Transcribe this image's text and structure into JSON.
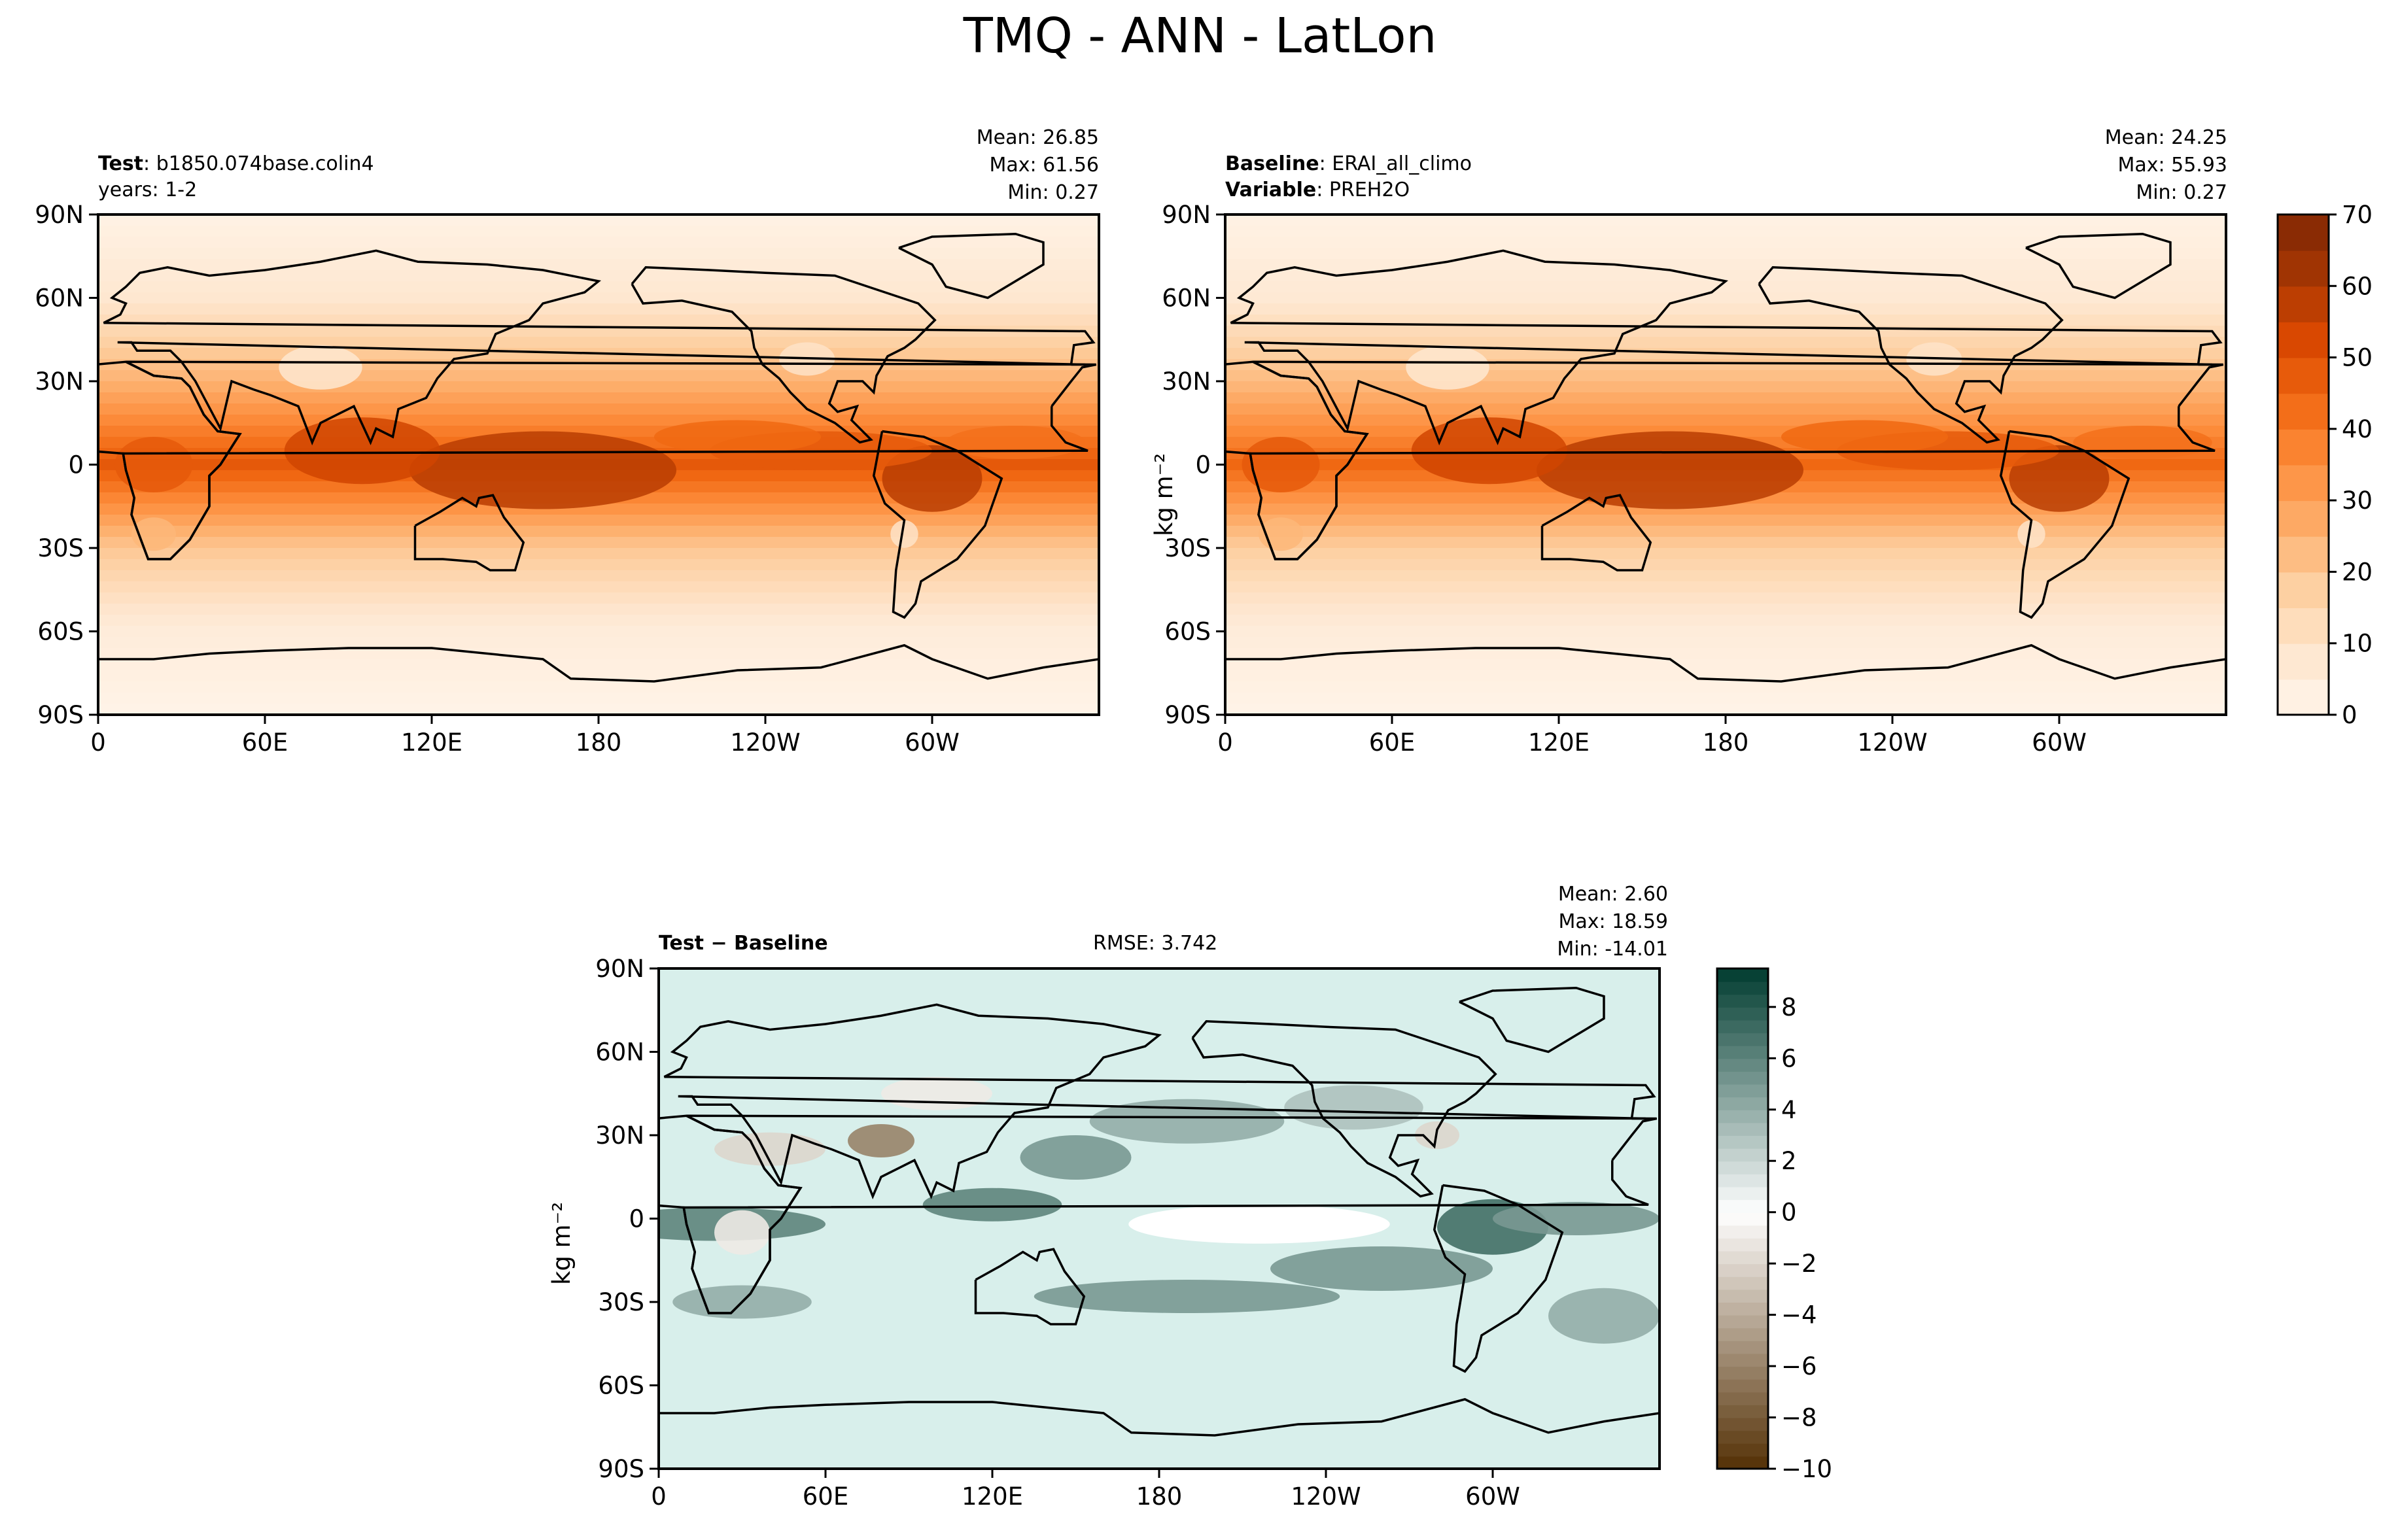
{
  "figure_title": "TMQ - ANN - LatLon",
  "panels": {
    "test": {
      "title_bold": "Test",
      "name": "b1850.074base.colin4",
      "line2": "years: 1-2",
      "stats": [
        "Mean: 26.85",
        "Max: 61.56",
        "Min:  0.27"
      ]
    },
    "baseline": {
      "title_bold": "Baseline",
      "name": "ERAI_all_climo",
      "variable_bold": "Variable",
      "variable": "PREH2O",
      "stats": [
        "Mean: 24.25",
        "Max: 55.93",
        "Min:  0.27"
      ],
      "colorbar_label": "kg m⁻²"
    },
    "diff": {
      "title": "Test − Baseline",
      "rmse": "RMSE: 3.742",
      "stats": [
        "Mean:  2.60",
        "Max: 18.59",
        "Min: -14.01"
      ],
      "ylabel": "kg m⁻²"
    }
  },
  "colors": {
    "sequential": [
      "#fff5eb",
      "#fee6ce",
      "#fdd0a2",
      "#fdae6b",
      "#fd8d3c",
      "#f16913",
      "#d94801",
      "#a63603",
      "#7f2704"
    ],
    "diverging_brown": "#543005",
    "diverging_white": "#ffffff",
    "diverging_teal": "#003c30"
  },
  "chart_data": [
    {
      "type": "heatmap",
      "name": "Test",
      "title": "b1850.074base.colin4",
      "xticklabels": [
        "0",
        "60E",
        "120E",
        "180",
        "120W",
        "60W"
      ],
      "yticklabels": [
        "90N",
        "60N",
        "30N",
        "0",
        "30S",
        "60S",
        "90S"
      ],
      "xlim": [
        0,
        360
      ],
      "ylim": [
        -90,
        90
      ],
      "mean": 26.85,
      "max": 61.56,
      "min": 0.27,
      "color_range": [
        0,
        70
      ],
      "zonal_profile": {
        "lat": [
          -90,
          -60,
          -30,
          0,
          30,
          60,
          90
        ],
        "value": [
          1,
          5,
          20,
          48,
          25,
          8,
          2
        ]
      }
    },
    {
      "type": "heatmap",
      "name": "Baseline",
      "title": "ERAI_all_climo",
      "xticklabels": [
        "0",
        "60E",
        "120E",
        "180",
        "120W",
        "60W"
      ],
      "yticklabels": [
        "90N",
        "60N",
        "30N",
        "0",
        "30S",
        "60S",
        "90S"
      ],
      "xlim": [
        0,
        360
      ],
      "ylim": [
        -90,
        90
      ],
      "mean": 24.25,
      "max": 55.93,
      "min": 0.27,
      "color_range": [
        0,
        70
      ],
      "zonal_profile": {
        "lat": [
          -90,
          -60,
          -30,
          0,
          30,
          60,
          90
        ],
        "value": [
          1,
          5,
          18,
          44,
          23,
          7,
          2
        ]
      },
      "colorbar": {
        "ticks": [
          0,
          10,
          20,
          30,
          40,
          50,
          60,
          70
        ],
        "ticklabels": [
          "0",
          "10",
          "20",
          "30",
          "40",
          "50",
          "60",
          "70"
        ],
        "label": "kg m⁻²"
      }
    },
    {
      "type": "heatmap",
      "name": "Test - Baseline",
      "title": "Test − Baseline",
      "xticklabels": [
        "0",
        "60E",
        "120E",
        "180",
        "120W",
        "60W"
      ],
      "yticklabels": [
        "90N",
        "60N",
        "30N",
        "0",
        "30S",
        "60S",
        "90S"
      ],
      "xlim": [
        0,
        360
      ],
      "ylim": [
        -90,
        90
      ],
      "mean": 2.6,
      "max": 18.59,
      "min": -14.01,
      "rmse": 3.742,
      "color_range": [
        -10,
        9.5
      ],
      "colorbar": {
        "ticks": [
          -10,
          -8,
          -6,
          -4,
          -2,
          0,
          2,
          4,
          6,
          8
        ],
        "ticklabels": [
          "−10",
          "−8",
          "−6",
          "−4",
          "−2",
          "0",
          "2",
          "4",
          "6",
          "8"
        ],
        "label": "kg m⁻²"
      }
    }
  ]
}
